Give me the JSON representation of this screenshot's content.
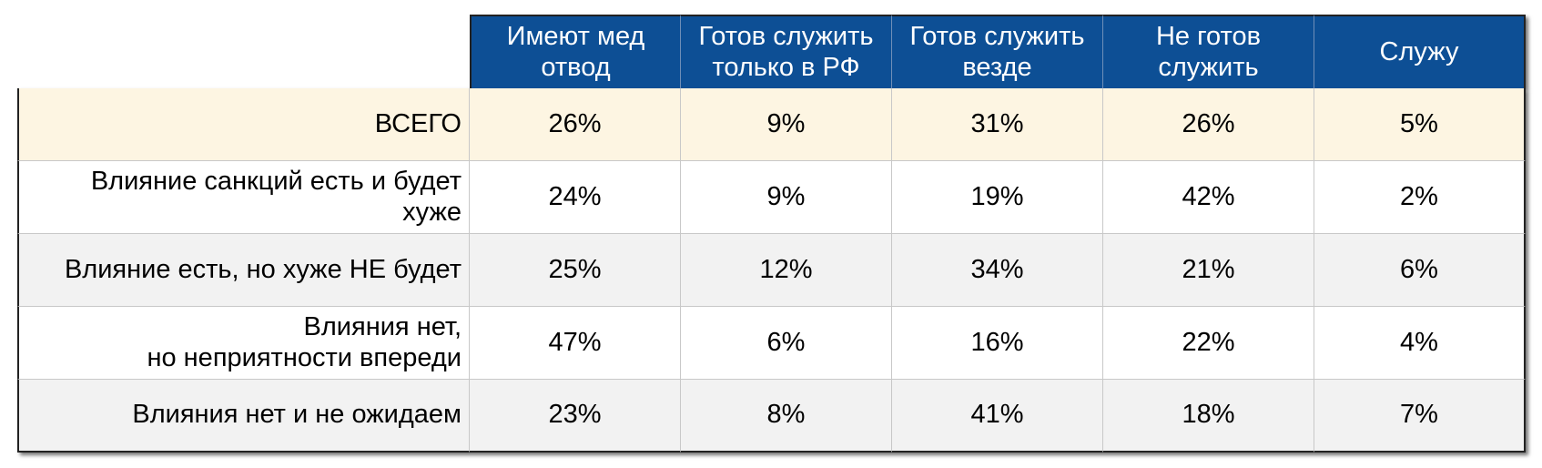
{
  "table": {
    "columns": [
      "Имеют мед\nотвод",
      "Готов служить\nтолько в РФ",
      "Готов служить\nвезде",
      "Не готов\nслужить",
      "Служу"
    ],
    "rows": [
      {
        "label": "ВСЕГО",
        "values": [
          "26%",
          "9%",
          "31%",
          "26%",
          "5%"
        ]
      },
      {
        "label": "Влияние санкций есть и будет\nхуже",
        "values": [
          "24%",
          "9%",
          "19%",
          "42%",
          "2%"
        ]
      },
      {
        "label": "Влияние есть, но хуже НЕ будет",
        "values": [
          "25%",
          "12%",
          "34%",
          "21%",
          "6%"
        ]
      },
      {
        "label": "Влияния нет,\nно неприятности впереди",
        "values": [
          "47%",
          "6%",
          "16%",
          "22%",
          "4%"
        ]
      },
      {
        "label": "Влияния нет и не ожидаем",
        "values": [
          "23%",
          "8%",
          "41%",
          "18%",
          "7%"
        ]
      }
    ]
  }
}
